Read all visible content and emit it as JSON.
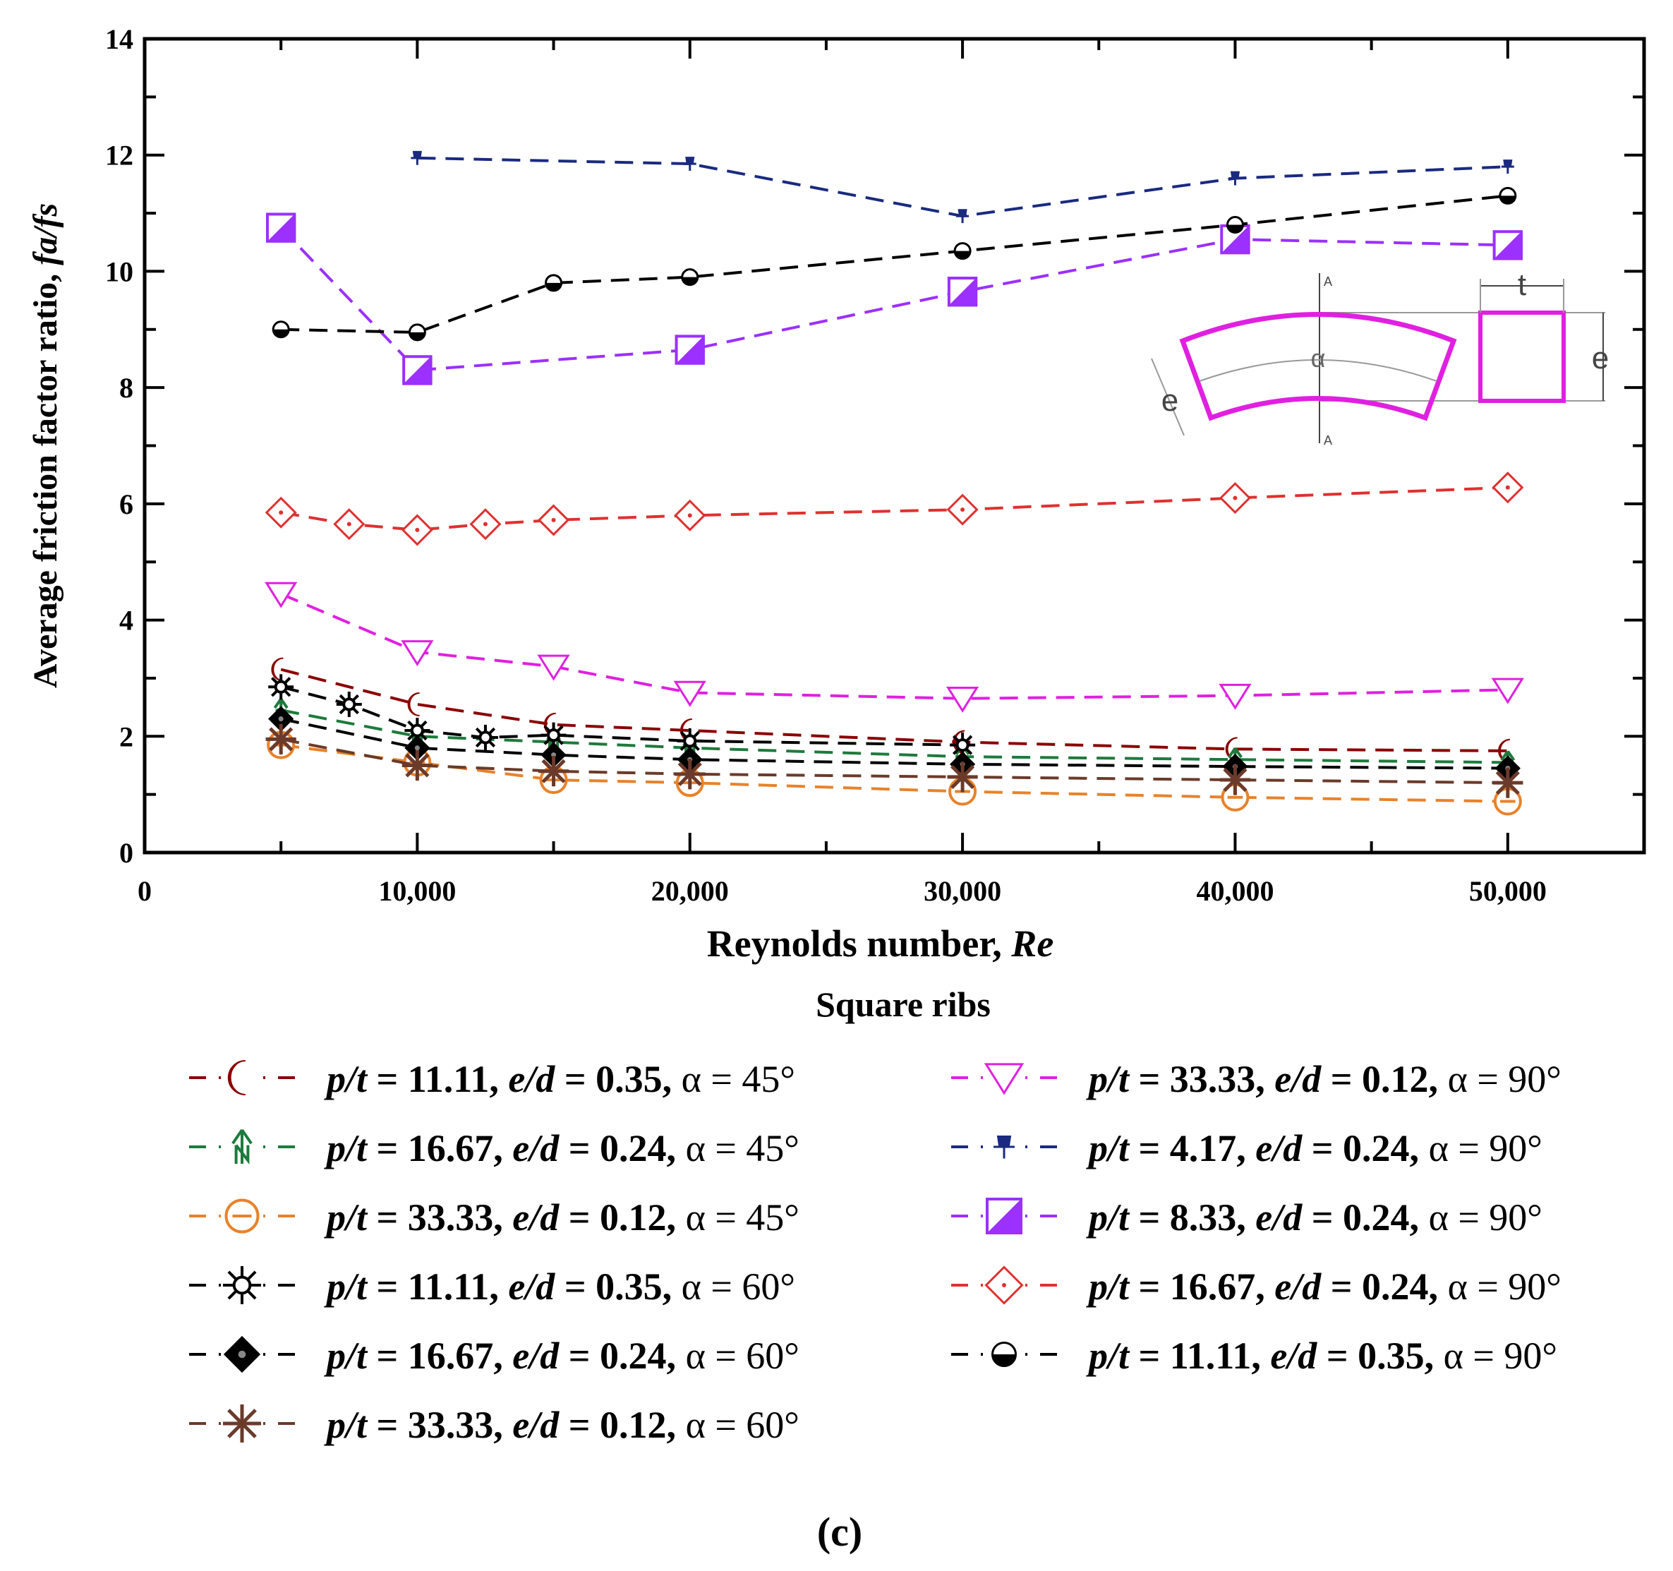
{
  "chart_data": {
    "type": "line",
    "title": "",
    "xlabel": "Reynolds number, Re",
    "xlabel_main": "Reynolds number, ",
    "xlabel_italic": "Re",
    "ylabel": "Average friction factor ratio, fa/fs",
    "ylabel_main": "Average friction factor ratio, ",
    "ylabel_italic": "fa/fs",
    "xlim": [
      0,
      55000
    ],
    "ylim": [
      0,
      14
    ],
    "x_ticks": [
      0,
      10000,
      20000,
      30000,
      40000,
      50000
    ],
    "x_tick_labels": [
      "0",
      "10,000",
      "20,000",
      "30,000",
      "40,000",
      "50,000"
    ],
    "y_ticks": [
      0,
      2,
      4,
      6,
      8,
      10,
      12,
      14
    ],
    "y_tick_labels": [
      "0",
      "2",
      "4",
      "6",
      "8",
      "10",
      "12",
      "14"
    ],
    "grid": false,
    "legend_title": "Square ribs",
    "legend_position": "below",
    "caption": "(c)",
    "inset_labels": {
      "alpha": "α",
      "e_left": "e",
      "t": "t",
      "e_right": "e",
      "section_top": "A",
      "section_bottom": "A"
    },
    "series": [
      {
        "name": "p/t = 11.11, e/d = 0.35, α = 45°",
        "label_parts": [
          "p/t",
          " = 11.11, ",
          "e/d",
          " = 0.35, ",
          "α = 45°"
        ],
        "marker": "crescent",
        "color": "#8b0000",
        "x": [
          5000,
          10000,
          15000,
          20000,
          30000,
          40000,
          50000
        ],
        "y": [
          3.15,
          2.55,
          2.2,
          2.1,
          1.9,
          1.78,
          1.75
        ]
      },
      {
        "name": "p/t = 16.67, e/d = 0.24, α = 45°",
        "label_parts": [
          "p/t",
          " = 16.67, ",
          "e/d",
          " = 0.24, ",
          "α = 45°"
        ],
        "marker": "arrow",
        "color": "#1e7a3c",
        "x": [
          5000,
          10000,
          15000,
          20000,
          30000,
          40000,
          50000
        ],
        "y": [
          2.45,
          2.0,
          1.9,
          1.8,
          1.65,
          1.6,
          1.55
        ]
      },
      {
        "name": "p/t = 33.33, e/d = 0.12, α = 45°",
        "label_parts": [
          "p/t",
          " = 33.33, ",
          "e/d",
          " = 0.12, ",
          "α = 45°"
        ],
        "marker": "circle-dash",
        "color": "#e8822a",
        "x": [
          5000,
          10000,
          15000,
          20000,
          30000,
          40000,
          50000
        ],
        "y": [
          1.85,
          1.55,
          1.25,
          1.2,
          1.05,
          0.95,
          0.88
        ]
      },
      {
        "name": "p/t = 11.11, e/d = 0.35, α = 60°",
        "label_parts": [
          "p/t",
          " = 11.11, ",
          "e/d",
          " = 0.35, ",
          "α = 60°"
        ],
        "marker": "sun",
        "color": "#000000",
        "x": [
          5000,
          7500,
          10000,
          12500,
          15000,
          20000,
          30000
        ],
        "y": [
          2.85,
          2.55,
          2.1,
          1.98,
          2.02,
          1.92,
          1.85
        ]
      },
      {
        "name": "p/t = 16.67, e/d = 0.24, α = 60°",
        "label_parts": [
          "p/t",
          " = 16.67, ",
          "e/d",
          " = 0.24, ",
          "α = 60°"
        ],
        "marker": "diamond-filled",
        "color": "#000000",
        "x": [
          5000,
          10000,
          15000,
          20000,
          30000,
          40000,
          50000
        ],
        "y": [
          2.3,
          1.8,
          1.68,
          1.6,
          1.52,
          1.48,
          1.45
        ]
      },
      {
        "name": "p/t = 33.33, e/d = 0.12, α = 60°",
        "label_parts": [
          "p/t",
          " = 33.33, ",
          "e/d",
          " = 0.12, ",
          "α = 60°"
        ],
        "marker": "asterisk",
        "color": "#6b3a2a",
        "x": [
          5000,
          10000,
          15000,
          20000,
          30000,
          40000,
          50000
        ],
        "y": [
          1.95,
          1.5,
          1.4,
          1.35,
          1.3,
          1.25,
          1.2
        ]
      },
      {
        "name": "p/t = 33.33, e/d = 0.12, α = 90°",
        "label_parts": [
          "p/t",
          " = 33.33, ",
          "e/d",
          " = 0.12, ",
          "α = 90°"
        ],
        "marker": "triangle-down",
        "color": "#e020e0",
        "x": [
          5000,
          10000,
          15000,
          20000,
          30000,
          40000,
          50000
        ],
        "y": [
          4.45,
          3.45,
          3.2,
          2.75,
          2.65,
          2.7,
          2.8
        ]
      },
      {
        "name": "p/t = 4.17, e/d = 0.24, α = 90°",
        "label_parts": [
          "p/t",
          " = 4.17, ",
          "e/d",
          " = 0.24, ",
          "α = 90°"
        ],
        "marker": "pin",
        "color": "#1a2a80",
        "x": [
          10000,
          20000,
          30000,
          40000,
          50000
        ],
        "y": [
          11.95,
          11.85,
          10.95,
          11.6,
          11.8
        ]
      },
      {
        "name": "p/t = 8.33, e/d = 0.24, α = 90°",
        "label_parts": [
          "p/t",
          " = 8.33, ",
          "e/d",
          " = 0.24, ",
          "α = 90°"
        ],
        "marker": "square-half",
        "color": "#9b30ff",
        "x": [
          5000,
          10000,
          20000,
          30000,
          40000,
          50000
        ],
        "y": [
          10.75,
          8.3,
          8.65,
          9.65,
          10.55,
          10.45
        ]
      },
      {
        "name": "p/t = 16.67, e/d = 0.24, α = 90°",
        "label_parts": [
          "p/t",
          " = 16.67, ",
          "e/d",
          " = 0.24, ",
          "α = 90°"
        ],
        "marker": "diamond-dot",
        "color": "#e03030",
        "x": [
          5000,
          7500,
          10000,
          12500,
          15000,
          20000,
          30000,
          40000,
          50000
        ],
        "y": [
          5.85,
          5.65,
          5.55,
          5.65,
          5.72,
          5.8,
          5.9,
          6.1,
          6.28
        ]
      },
      {
        "name": "p/t = 11.11, e/d = 0.35, α = 90°",
        "label_parts": [
          "p/t",
          " = 11.11, ",
          "e/d",
          " = 0.35, ",
          "α = 90°"
        ],
        "marker": "circle-half",
        "color": "#000000",
        "x": [
          5000,
          10000,
          15000,
          20000,
          30000,
          40000,
          50000
        ],
        "y": [
          9.0,
          8.95,
          9.8,
          9.9,
          10.35,
          10.8,
          11.3
        ]
      }
    ]
  }
}
